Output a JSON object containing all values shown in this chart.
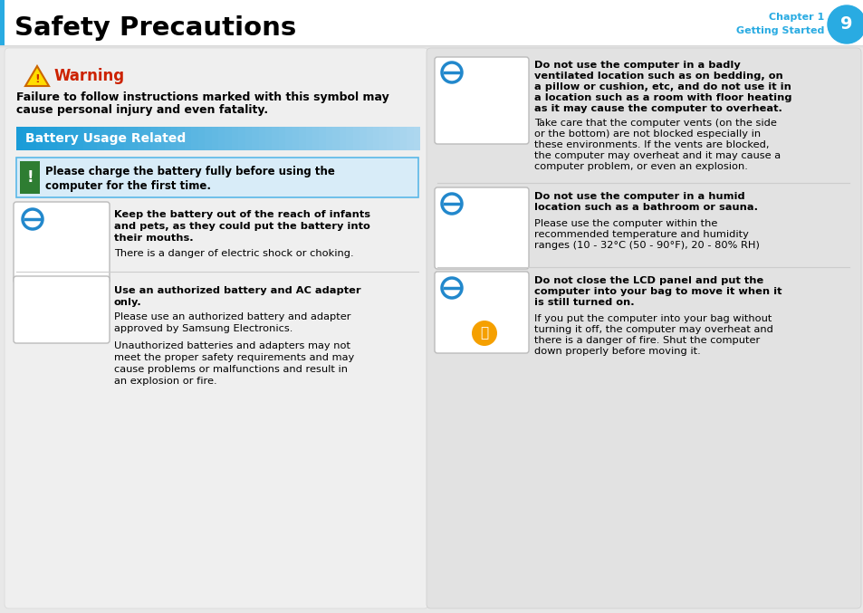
{
  "bg_color": "#e8e8e8",
  "header_bg": "#ffffff",
  "header_title": "Safety Precautions",
  "header_chapter": "Chapter 1",
  "header_sub": "Getting Started",
  "header_page": "9",
  "header_circle_color": "#29abe2",
  "header_text_color": "#29abe2",
  "warning_color": "#cc2200",
  "warning_title": "Warning",
  "warning_text1": "Failure to follow instructions marked with this symbol may",
  "warning_text2": "cause personal injury and even fatality.",
  "battery_section_title": "Battery Usage Related",
  "battery_section_bg_left": "#1a9cd8",
  "battery_section_bg_right": "#a0d8f0",
  "battery_section_text_color": "#ffffff",
  "notice_bg": "#ddeeff",
  "notice_border": "#5bb8e8",
  "notice_icon_color": "#2e7d32",
  "notice_text1": "Please charge the battery fully before using the",
  "notice_text2": "computer for the first time.",
  "left_panel_bg": "#eeeeee",
  "right_panel_bg": "#e0e0e0",
  "item1_bold1": "Keep the battery out of the reach of infants",
  "item1_bold2": "and pets, as they could put the battery into",
  "item1_bold3": "their mouths.",
  "item1_normal": "There is a danger of electric shock or choking.",
  "item2_bold1": "Use an authorized battery and AC adapter",
  "item2_bold2": "only.",
  "item2_normal1": "Please use an authorized battery and adapter",
  "item2_normal2": "approved by Samsung Electronics.",
  "item2_normal3": "Unauthorized batteries and adapters may not",
  "item2_normal4": "meet the proper safety requirements and may",
  "item2_normal5": "cause problems or malfunctions and result in",
  "item2_normal6": "an explosion or fire.",
  "right1_bold1": "Do not use the computer in a badly",
  "right1_bold2": "ventilated location such as on bedding, on",
  "right1_bold3": "a pillow or cushion, etc, and do not use it in",
  "right1_bold4": "a location such as a room with floor heating",
  "right1_bold5": "as it may cause the computer to overheat.",
  "right1_normal1": "Take care that the computer vents (on the side",
  "right1_normal2": "or the bottom) are not blocked especially in",
  "right1_normal3": "these environments. If the vents are blocked,",
  "right1_normal4": "the computer may overheat and it may cause a",
  "right1_normal5": "computer problem, or even an explosion.",
  "right2_bold1": "Do not use the computer in a humid",
  "right2_bold2": "location such as a bathroom or sauna.",
  "right2_normal1": "Please use the computer within the",
  "right2_normal2": "recommended temperature and humidity",
  "right2_normal3": "ranges (10 - 32°C (50 - 90°F), 20 - 80% RH)",
  "right3_bold1": "Do not close the LCD panel and put the",
  "right3_bold2": "computer into your bag to move it when it",
  "right3_bold3": "is still turned on.",
  "right3_normal1": "If you put the computer into your bag without",
  "right3_normal2": "turning it off, the computer may overheat and",
  "right3_normal3": "there is a danger of fire. Shut the computer",
  "right3_normal4": "down properly before moving it.",
  "divider_color": "#cccccc"
}
